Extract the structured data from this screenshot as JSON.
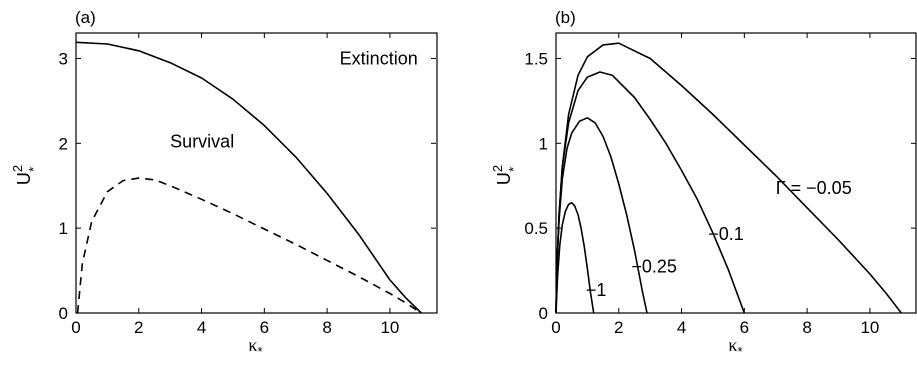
{
  "chart_data": [
    {
      "type": "line",
      "panel_label": "(a)",
      "title": "",
      "xlabel": "κ",
      "xlabel_sub": "*",
      "ylabel": "U",
      "ylabel_sup": "2",
      "ylabel_sub": "*",
      "xlim": [
        0,
        11.5
      ],
      "ylim": [
        0,
        3.3
      ],
      "xticks": [
        0,
        2,
        4,
        6,
        8,
        10
      ],
      "yticks": [
        0,
        1,
        2,
        3
      ],
      "grid": false,
      "annotations": [
        {
          "text": "Extinction",
          "x": 8.4,
          "y": 2.93
        },
        {
          "text": "Survival",
          "x": 3.0,
          "y": 1.95
        }
      ],
      "series": [
        {
          "style": "solid",
          "x": [
            0,
            1,
            2,
            3,
            4,
            5,
            6,
            7,
            8,
            9,
            10,
            10.5,
            11
          ],
          "y": [
            3.19,
            3.17,
            3.09,
            2.95,
            2.77,
            2.52,
            2.21,
            1.84,
            1.41,
            0.93,
            0.39,
            0.18,
            0.0
          ]
        },
        {
          "style": "dashed",
          "x": [
            0.05,
            0.2,
            0.5,
            1.0,
            1.5,
            2.0,
            2.5,
            3,
            4,
            5,
            6,
            7,
            8,
            9,
            10,
            10.5,
            11
          ],
          "y": [
            0.0,
            0.58,
            1.08,
            1.43,
            1.56,
            1.59,
            1.57,
            1.5,
            1.34,
            1.17,
            0.99,
            0.81,
            0.62,
            0.43,
            0.23,
            0.12,
            0.0
          ]
        }
      ]
    },
    {
      "type": "line",
      "panel_label": "(b)",
      "title": "",
      "xlabel": "κ",
      "xlabel_sub": "*",
      "ylabel": "U",
      "ylabel_sup": "2",
      "ylabel_sub": "*",
      "xlim": [
        0,
        11.5
      ],
      "ylim": [
        0,
        1.65
      ],
      "xticks": [
        0,
        2,
        4,
        6,
        8,
        10
      ],
      "yticks": [
        0,
        0.5,
        1,
        1.5
      ],
      "grid": false,
      "annotations": [
        {
          "text": "Γ = −0.05",
          "x": 7.0,
          "y": 0.7
        },
        {
          "text": "−0.1",
          "x": 4.85,
          "y": 0.43
        },
        {
          "text": "−0.25",
          "x": 2.4,
          "y": 0.24
        },
        {
          "text": "−1",
          "x": 0.95,
          "y": 0.1
        }
      ],
      "series": [
        {
          "name": "Γ = −0.05",
          "x": [
            0,
            0.03,
            0.1,
            0.2,
            0.4,
            0.7,
            1.0,
            1.5,
            2.0,
            3,
            4,
            5,
            6,
            7,
            8,
            9,
            10,
            10.5,
            11
          ],
          "y": [
            0,
            0.28,
            0.58,
            0.86,
            1.17,
            1.4,
            1.51,
            1.58,
            1.59,
            1.5,
            1.34,
            1.17,
            0.99,
            0.81,
            0.62,
            0.43,
            0.23,
            0.12,
            0
          ]
        },
        {
          "name": "−0.1",
          "x": [
            0,
            0.03,
            0.1,
            0.2,
            0.4,
            0.7,
            1.0,
            1.4,
            1.8,
            2.5,
            3,
            3.5,
            4,
            4.5,
            5,
            5.5,
            6
          ],
          "y": [
            0,
            0.28,
            0.58,
            0.86,
            1.12,
            1.31,
            1.39,
            1.42,
            1.4,
            1.27,
            1.14,
            1.0,
            0.84,
            0.67,
            0.47,
            0.25,
            0
          ]
        },
        {
          "name": "−0.25",
          "x": [
            0,
            0.03,
            0.1,
            0.2,
            0.35,
            0.5,
            0.75,
            1.0,
            1.25,
            1.5,
            1.75,
            2.0,
            2.25,
            2.5,
            2.75,
            2.9
          ],
          "y": [
            0,
            0.28,
            0.55,
            0.79,
            0.97,
            1.06,
            1.13,
            1.15,
            1.12,
            1.04,
            0.92,
            0.76,
            0.58,
            0.37,
            0.13,
            0
          ]
        },
        {
          "name": "−1",
          "x": [
            0,
            0.05,
            0.12,
            0.2,
            0.3,
            0.4,
            0.5,
            0.6,
            0.7,
            0.8,
            0.9,
            1.0,
            1.1,
            1.2
          ],
          "y": [
            0,
            0.22,
            0.4,
            0.52,
            0.6,
            0.64,
            0.65,
            0.63,
            0.58,
            0.5,
            0.39,
            0.26,
            0.12,
            0
          ]
        }
      ]
    }
  ]
}
